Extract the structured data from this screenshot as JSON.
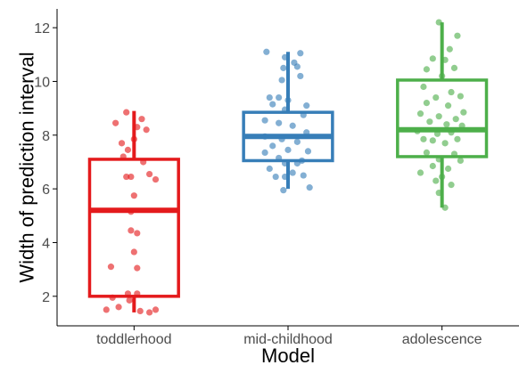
{
  "chart_data": {
    "type": "box",
    "title": "",
    "xlabel": "Model",
    "ylabel": "Width of prediction interval",
    "ylim": [
      0.9,
      12.7
    ],
    "yticks": [
      2,
      4,
      6,
      8,
      10,
      12
    ],
    "grid": false,
    "legend": "none",
    "categories": [
      "toddlerhood",
      "mid-childhood",
      "adolescence"
    ],
    "boxes": [
      {
        "name": "toddlerhood",
        "color": "#e41a1c",
        "whisker_low": 1.4,
        "q1": 2.0,
        "median": 5.2,
        "q3": 7.1,
        "whisker_high": 8.9
      },
      {
        "name": "mid-childhood",
        "color": "#377eb8",
        "whisker_low": 6.0,
        "q1": 7.05,
        "median": 7.95,
        "q3": 8.85,
        "whisker_high": 11.1
      },
      {
        "name": "adolescence",
        "color": "#4daf4a",
        "whisker_low": 5.3,
        "q1": 7.2,
        "median": 8.2,
        "q3": 10.05,
        "whisker_high": 12.2
      }
    ],
    "points": [
      [
        [
          -0.05,
          8.85
        ],
        [
          0.05,
          8.6
        ],
        [
          -0.12,
          8.45
        ],
        [
          0.02,
          8.3
        ],
        [
          0.08,
          8.2
        ],
        [
          -0.08,
          7.7
        ],
        [
          -0.04,
          7.45
        ],
        [
          0.0,
          7.85
        ],
        [
          -0.07,
          7.2
        ],
        [
          0.06,
          7.0
        ],
        [
          0.1,
          6.55
        ],
        [
          -0.02,
          6.45
        ],
        [
          -0.05,
          6.45
        ],
        [
          0.14,
          6.35
        ],
        [
          0.0,
          5.75
        ],
        [
          -0.02,
          5.15
        ],
        [
          -0.02,
          4.45
        ],
        [
          0.02,
          4.35
        ],
        [
          0.0,
          3.65
        ],
        [
          -0.15,
          3.1
        ],
        [
          0.02,
          3.05
        ],
        [
          -0.04,
          2.1
        ],
        [
          0.02,
          2.1
        ],
        [
          -0.14,
          1.95
        ],
        [
          -0.03,
          1.85
        ],
        [
          -0.18,
          1.5
        ],
        [
          0.14,
          1.5
        ],
        [
          -0.1,
          1.6
        ],
        [
          0.04,
          1.45
        ],
        [
          0.1,
          1.4
        ]
      ],
      [
        [
          -0.14,
          11.1
        ],
        [
          0.08,
          11.05
        ],
        [
          -0.02,
          10.9
        ],
        [
          0.04,
          10.7
        ],
        [
          0.06,
          10.55
        ],
        [
          -0.03,
          10.5
        ],
        [
          0.08,
          10.2
        ],
        [
          -0.04,
          10.05
        ],
        [
          -0.12,
          9.4
        ],
        [
          -0.06,
          9.4
        ],
        [
          0.0,
          9.3
        ],
        [
          0.12,
          9.1
        ],
        [
          -0.1,
          9.15
        ],
        [
          -0.02,
          8.95
        ],
        [
          0.1,
          8.75
        ],
        [
          -0.15,
          8.55
        ],
        [
          -0.06,
          8.45
        ],
        [
          0.03,
          8.35
        ],
        [
          0.12,
          8.1
        ],
        [
          -0.15,
          7.95
        ],
        [
          -0.04,
          7.85
        ],
        [
          0.06,
          7.75
        ],
        [
          -0.1,
          7.6
        ],
        [
          0.0,
          7.45
        ],
        [
          0.13,
          7.4
        ],
        [
          -0.15,
          7.35
        ],
        [
          -0.06,
          7.15
        ],
        [
          0.09,
          7.05
        ],
        [
          -0.02,
          6.95
        ],
        [
          0.06,
          6.95
        ],
        [
          -0.12,
          6.75
        ],
        [
          0.03,
          6.6
        ],
        [
          -0.08,
          6.45
        ],
        [
          0.1,
          6.5
        ],
        [
          -0.02,
          6.45
        ],
        [
          0.14,
          6.05
        ],
        [
          -0.03,
          5.95
        ]
      ],
      [
        [
          -0.02,
          12.2
        ],
        [
          0.1,
          11.7
        ],
        [
          0.05,
          11.2
        ],
        [
          -0.06,
          10.85
        ],
        [
          0.02,
          10.8
        ],
        [
          0.08,
          10.5
        ],
        [
          -0.1,
          10.45
        ],
        [
          0.0,
          10.2
        ],
        [
          -0.12,
          9.8
        ],
        [
          0.06,
          9.6
        ],
        [
          -0.04,
          9.4
        ],
        [
          0.12,
          9.45
        ],
        [
          -0.1,
          9.2
        ],
        [
          0.04,
          9.1
        ],
        [
          0.14,
          8.85
        ],
        [
          -0.14,
          8.8
        ],
        [
          -0.02,
          8.7
        ],
        [
          0.09,
          8.6
        ],
        [
          -0.08,
          8.5
        ],
        [
          0.03,
          8.4
        ],
        [
          0.13,
          8.35
        ],
        [
          -0.16,
          8.15
        ],
        [
          -0.03,
          8.05
        ],
        [
          0.06,
          8.1
        ],
        [
          -0.12,
          7.85
        ],
        [
          0.1,
          7.85
        ],
        [
          -0.06,
          7.8
        ],
        [
          0.02,
          7.7
        ],
        [
          -0.1,
          7.35
        ],
        [
          0.08,
          7.3
        ],
        [
          -0.02,
          7.1
        ],
        [
          0.12,
          7.05
        ],
        [
          -0.06,
          6.85
        ],
        [
          0.04,
          6.75
        ],
        [
          -0.14,
          6.6
        ],
        [
          0.0,
          6.45
        ],
        [
          -0.04,
          6.3
        ],
        [
          0.06,
          6.15
        ],
        [
          -0.02,
          5.85
        ],
        [
          0.02,
          5.3
        ]
      ]
    ]
  }
}
